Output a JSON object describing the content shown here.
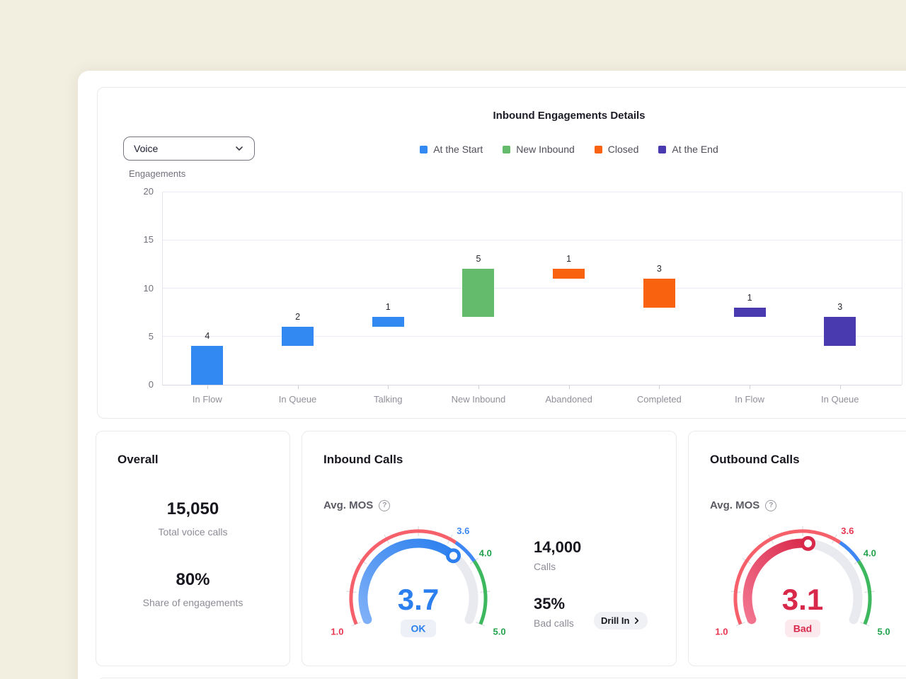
{
  "app": {
    "background_color": "#F2EEE0"
  },
  "chart": {
    "title": "Inbound Engagements Details",
    "channel_filter": {
      "value": "Voice"
    },
    "y_axis_label": "Engagements",
    "legend": [
      {
        "label": "At the Start",
        "color": "#3389F2"
      },
      {
        "label": "New Inbound",
        "color": "#65BB6C"
      },
      {
        "label": "Closed",
        "color": "#F96310"
      },
      {
        "label": "At the End",
        "color": "#493BAF"
      }
    ]
  },
  "chart_data": {
    "type": "bar",
    "subtype": "floating-waterfall-bars",
    "title": "Inbound Engagements Details",
    "ylabel": "Engagements",
    "ylim": [
      0,
      20
    ],
    "y_ticks": [
      0,
      5,
      10,
      15,
      20
    ],
    "grid": true,
    "legend_position": "top-center",
    "categories": [
      "In Flow",
      "In Queue",
      "Talking",
      "New Inbound",
      "Abandoned",
      "Completed",
      "In Flow",
      "In Queue"
    ],
    "bars": [
      {
        "category": "In Flow",
        "series": "At the Start",
        "color": "#3389F2",
        "from": 0,
        "to": 4,
        "value": 4
      },
      {
        "category": "In Queue",
        "series": "At the Start",
        "color": "#3389F2",
        "from": 4,
        "to": 6,
        "value": 2
      },
      {
        "category": "Talking",
        "series": "At the Start",
        "color": "#3389F2",
        "from": 6,
        "to": 7,
        "value": 1
      },
      {
        "category": "New Inbound",
        "series": "New Inbound",
        "color": "#65BB6C",
        "from": 7,
        "to": 12,
        "value": 5
      },
      {
        "category": "Abandoned",
        "series": "Closed",
        "color": "#F96310",
        "from": 11,
        "to": 12,
        "value": 1
      },
      {
        "category": "Completed",
        "series": "Closed",
        "color": "#F96310",
        "from": 8,
        "to": 11,
        "value": 3
      },
      {
        "category": "In Flow",
        "series": "At the End",
        "color": "#493BAF",
        "from": 7,
        "to": 8,
        "value": 1
      },
      {
        "category": "In Queue",
        "series": "At the End",
        "color": "#493BAF",
        "from": 4,
        "to": 7,
        "value": 3
      }
    ]
  },
  "cards": {
    "overall": {
      "title": "Overall",
      "metric1_value": "15,050",
      "metric1_label": "Total voice calls",
      "metric2_value": "80%",
      "metric2_label": "Share of engagements"
    },
    "inbound": {
      "title": "Inbound Calls",
      "gauge_label": "Avg. MOS",
      "calls_value": "14,000",
      "calls_label": "Calls",
      "bad_value": "35%",
      "bad_label": "Bad calls",
      "drill_label": "Drill In",
      "gauge": {
        "min": 1,
        "max": 5,
        "value": 3.7,
        "display": "3.7",
        "status": "OK",
        "value_color": "#2B7FEE",
        "progress_color": "#2B7FEE",
        "progress_light": "#7FB0F7",
        "track_color": "#E8EAEF",
        "status_bg": "#EDF1F7",
        "status_color": "#2B7FEE",
        "ring_segments": [
          {
            "from": 1,
            "to": 3.6,
            "color": "#F5606A"
          },
          {
            "from": 3.6,
            "to": 4,
            "color": "#3E87F5"
          },
          {
            "from": 4,
            "to": 5,
            "color": "#3DB85F"
          }
        ],
        "tick_labels": [
          {
            "value": 1,
            "text": "1.0",
            "color": "#E8354F"
          },
          {
            "value": 3.6,
            "text": "3.6",
            "color": "#3E87F5"
          },
          {
            "value": 4,
            "text": "4.0",
            "color": "#21A24D"
          },
          {
            "value": 5,
            "text": "5.0",
            "color": "#21A24D"
          }
        ]
      }
    },
    "outbound": {
      "title": "Outbound Calls",
      "gauge_label": "Avg. MOS",
      "gauge": {
        "min": 1,
        "max": 5,
        "value": 3.1,
        "display": "3.1",
        "status": "Bad",
        "value_color": "#D9294B",
        "progress_color": "#D9294B",
        "progress_light": "#F2758F",
        "track_color": "#E8EAEF",
        "status_bg": "#FBE9EE",
        "status_color": "#D9294B",
        "ring_segments": [
          {
            "from": 1,
            "to": 3.6,
            "color": "#F5606A"
          },
          {
            "from": 3.6,
            "to": 4,
            "color": "#3E87F5"
          },
          {
            "from": 4,
            "to": 5,
            "color": "#3DB85F"
          }
        ],
        "tick_labels": [
          {
            "value": 1,
            "text": "1.0",
            "color": "#E8354F"
          },
          {
            "value": 3.6,
            "text": "3.6",
            "color": "#E8354F"
          },
          {
            "value": 4,
            "text": "4.0",
            "color": "#21A24D"
          },
          {
            "value": 5,
            "text": "5.0",
            "color": "#21A24D"
          }
        ]
      }
    }
  }
}
